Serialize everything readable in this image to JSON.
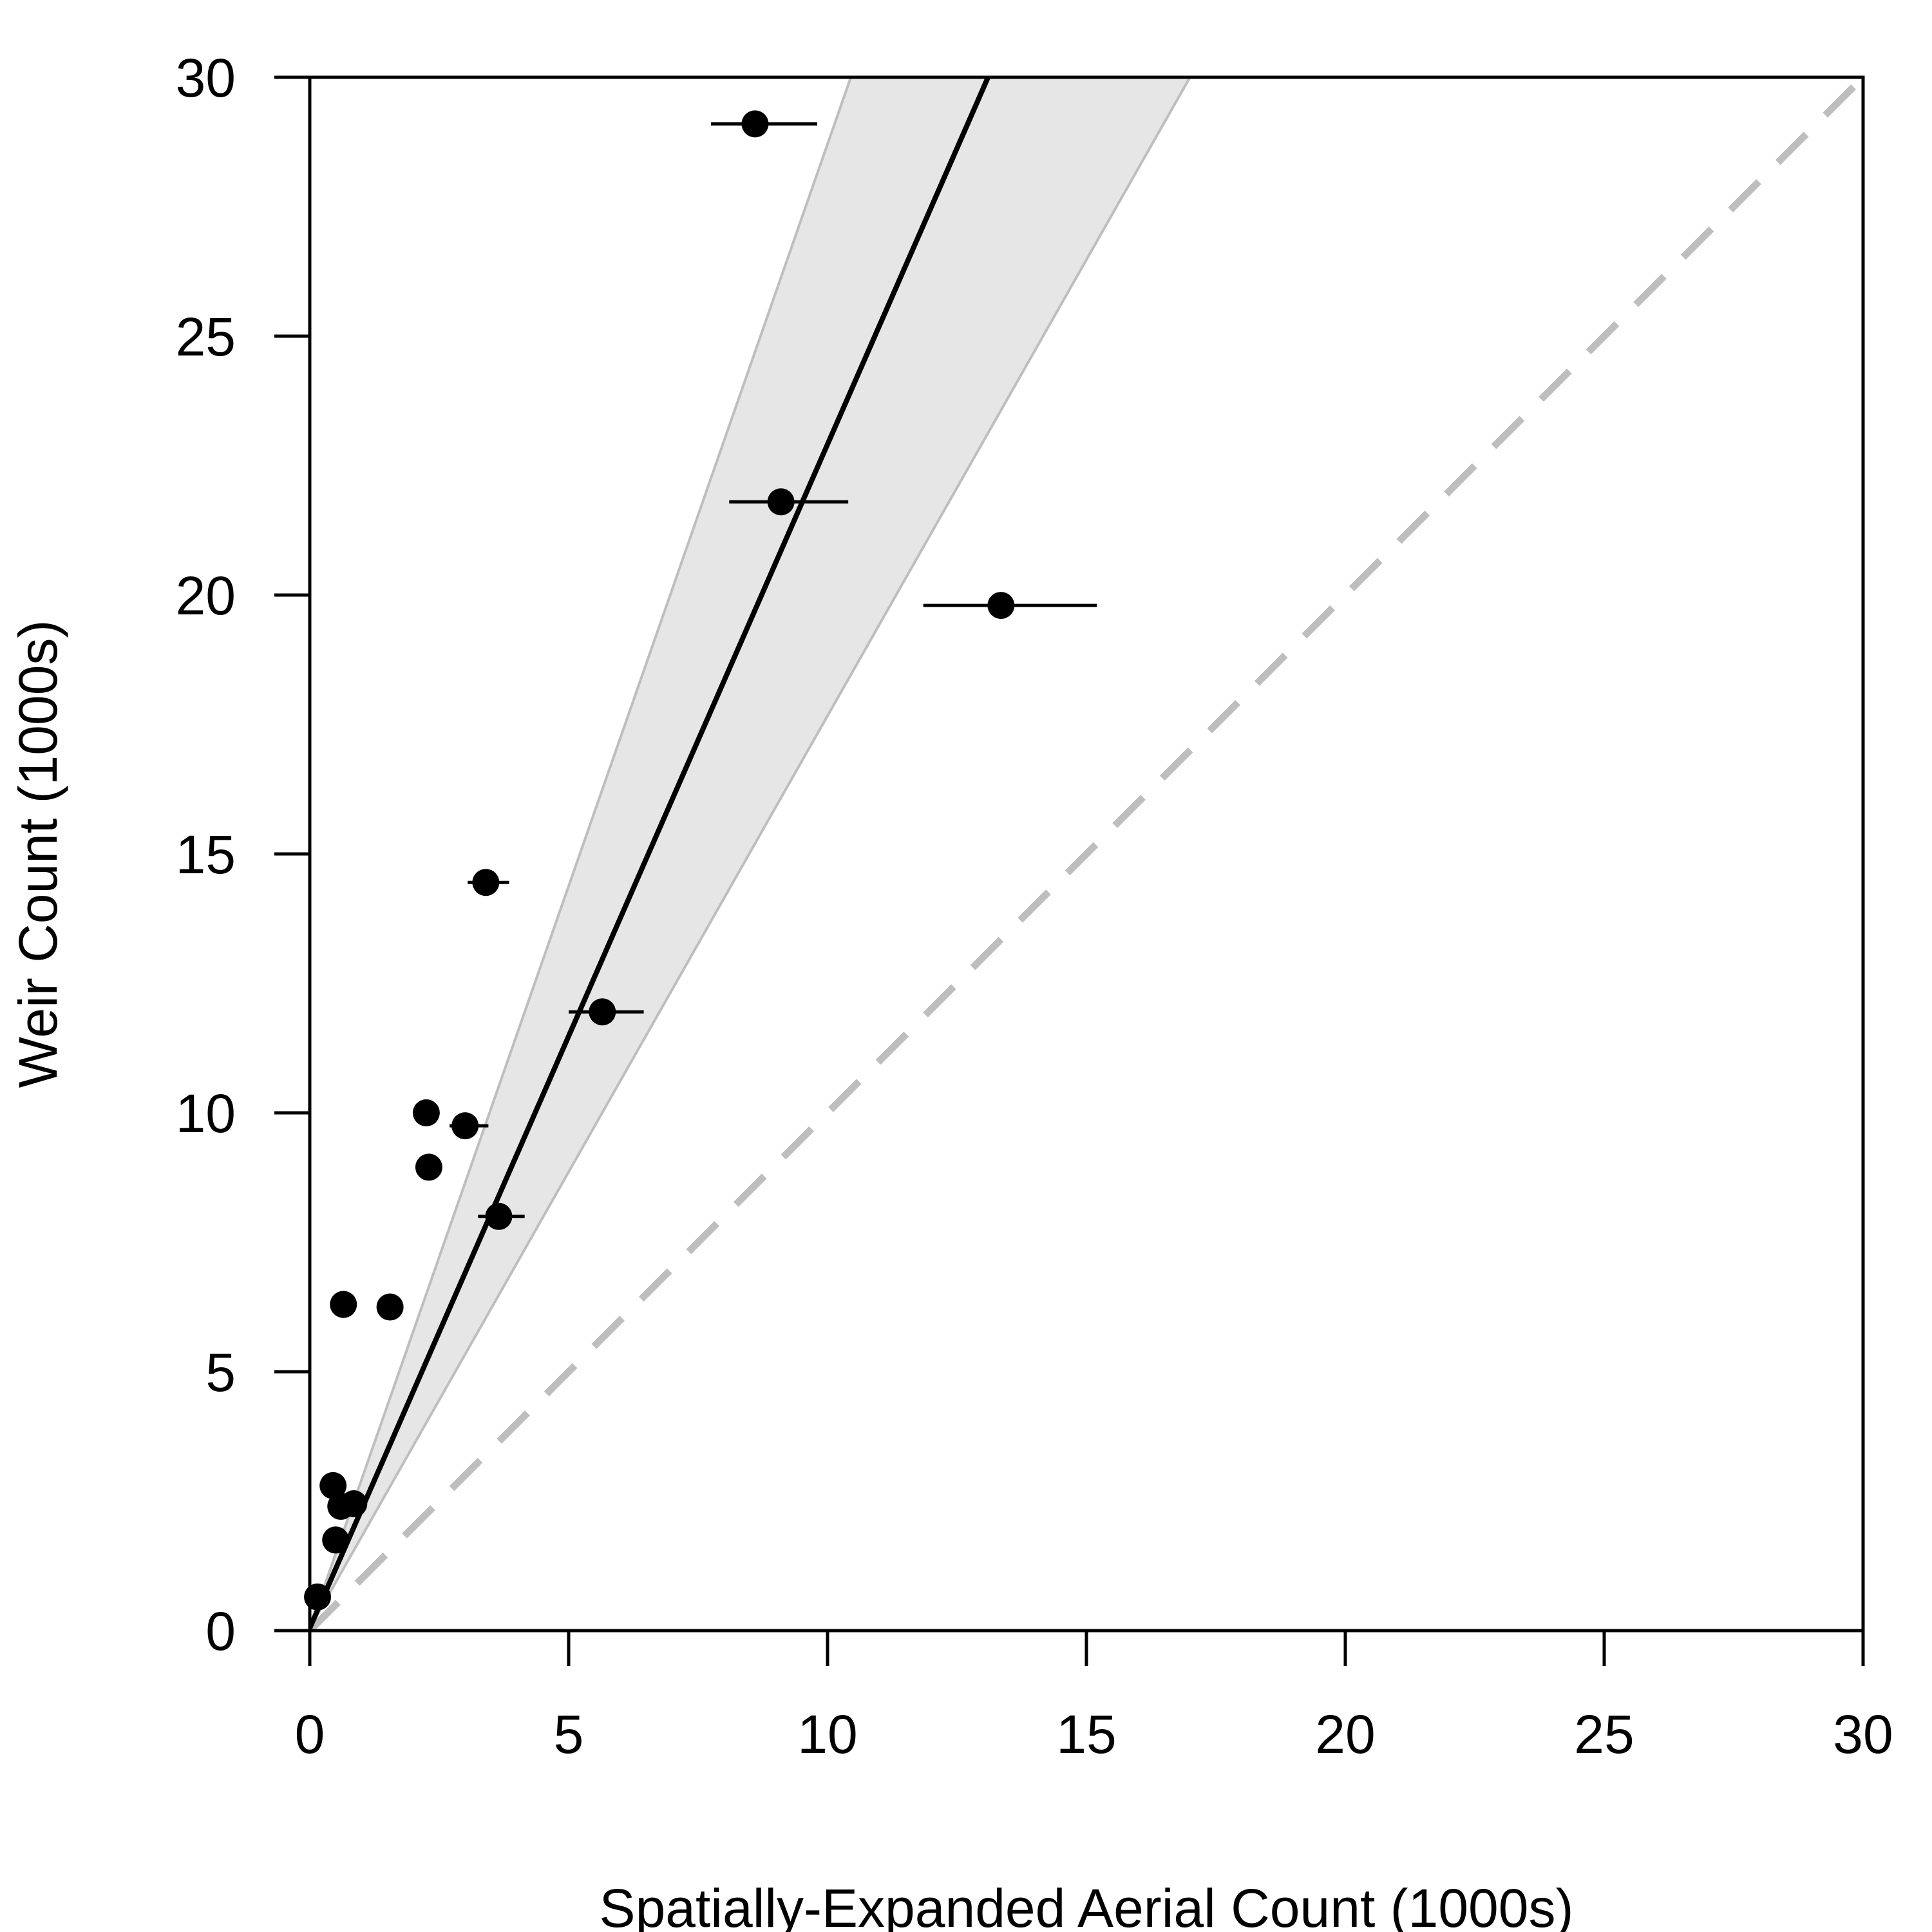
{
  "chart_data": {
    "type": "scatter",
    "title": "",
    "xlabel": "Spatially-Expanded Aerial Count (1000s)",
    "ylabel": "Weir Count (1000s)",
    "xlim": [
      0,
      30
    ],
    "ylim": [
      0,
      30
    ],
    "xticks": [
      "0",
      "5",
      "10",
      "15",
      "20",
      "25",
      "30"
    ],
    "yticks": [
      "0",
      "5",
      "10",
      "15",
      "20",
      "25",
      "30"
    ],
    "grid": false,
    "legend": "none",
    "points": [
      {
        "x": 0.15,
        "y": 0.65,
        "xmin": 0.15,
        "xmax": 0.15
      },
      {
        "x": 0.45,
        "y": 2.8,
        "xmin": 0.45,
        "xmax": 0.45
      },
      {
        "x": 0.5,
        "y": 1.75,
        "xmin": 0.5,
        "xmax": 0.5
      },
      {
        "x": 0.6,
        "y": 2.4,
        "xmin": 0.6,
        "xmax": 0.6
      },
      {
        "x": 0.85,
        "y": 2.45,
        "xmin": 0.85,
        "xmax": 0.85
      },
      {
        "x": 0.65,
        "y": 6.3,
        "xmin": 0.65,
        "xmax": 0.65
      },
      {
        "x": 1.55,
        "y": 6.25,
        "xmin": 1.55,
        "xmax": 1.55
      },
      {
        "x": 2.25,
        "y": 10.0,
        "xmin": 2.25,
        "xmax": 2.25
      },
      {
        "x": 2.3,
        "y": 8.95,
        "xmin": 2.2,
        "xmax": 2.55
      },
      {
        "x": 3.0,
        "y": 9.75,
        "xmin": 2.7,
        "xmax": 3.45
      },
      {
        "x": 3.4,
        "y": 14.45,
        "xmin": 3.05,
        "xmax": 3.85
      },
      {
        "x": 3.65,
        "y": 8.0,
        "xmin": 3.25,
        "xmax": 4.15
      },
      {
        "x": 5.65,
        "y": 11.95,
        "xmin": 5.0,
        "xmax": 6.45
      },
      {
        "x": 8.6,
        "y": 29.1,
        "xmin": 7.75,
        "xmax": 9.8
      },
      {
        "x": 9.1,
        "y": 21.8,
        "xmin": 8.1,
        "xmax": 10.4
      },
      {
        "x": 13.35,
        "y": 19.8,
        "xmin": 11.85,
        "xmax": 15.2
      }
    ],
    "fit_line": [
      [
        0,
        0.05
      ],
      [
        13.1,
        30
      ]
    ],
    "confidence_band": {
      "upper": [
        [
          0,
          0.05
        ],
        [
          10.45,
          30
        ]
      ],
      "lower": [
        [
          0,
          0.05
        ],
        [
          17.0,
          30
        ]
      ]
    },
    "reference_line": [
      [
        0,
        0
      ],
      [
        30,
        30
      ]
    ],
    "colors": {
      "points": "#000000",
      "fit_line": "#000000",
      "band_fill": "#e6e6e6",
      "band_edge": "#bebebe",
      "reference": "#bebebe"
    }
  }
}
